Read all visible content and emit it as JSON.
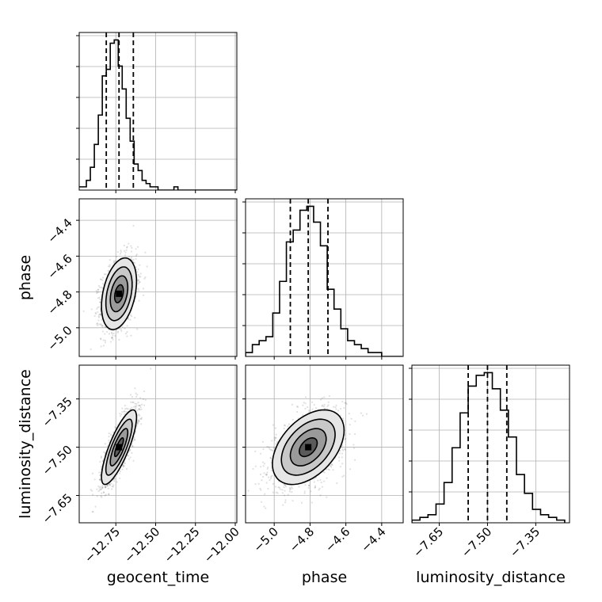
{
  "chart_data": {
    "type": "corner",
    "grid": true,
    "parameters": [
      {
        "name": "geocent_time",
        "range": [
          -12.98,
          -11.99
        ],
        "ticks": [
          -12.75,
          -12.5,
          -12.25,
          -12.0
        ],
        "tick_labels": [
          "−12.75",
          "−12.50",
          "−12.25",
          "−12.00"
        ],
        "quantiles": [
          -12.81,
          -12.73,
          -12.64
        ]
      },
      {
        "name": "phase",
        "range": [
          -5.16,
          -4.28
        ],
        "ticks": [
          -5.0,
          -4.8,
          -4.6,
          -4.4
        ],
        "tick_labels": [
          "−5.0",
          "−4.8",
          "−4.6",
          "−4.4"
        ],
        "quantiles": [
          -4.91,
          -4.81,
          -4.7
        ]
      },
      {
        "name": "luminosity_distance",
        "range": [
          -7.735,
          -7.245
        ],
        "ticks": [
          -7.65,
          -7.5,
          -7.35
        ],
        "tick_labels": [
          "−7.65",
          "−7.50",
          "−7.35"
        ],
        "quantiles": [
          -7.56,
          -7.5,
          -7.44
        ]
      }
    ],
    "diagonal_histograms": [
      {
        "parameter": "geocent_time",
        "bin_edges": [
          -12.985,
          -12.96,
          -12.935,
          -12.91,
          -12.885,
          -12.86,
          -12.835,
          -12.81,
          -12.785,
          -12.76,
          -12.735,
          -12.71,
          -12.685,
          -12.66,
          -12.635,
          -12.61,
          -12.585,
          -12.56,
          -12.535,
          -12.51,
          -12.485,
          -12.46,
          -12.435,
          -12.41,
          -12.385,
          -12.36,
          -12.335,
          -12.31,
          -12.285,
          -12.26,
          -12.235,
          -12.21,
          -12.185,
          -12.16,
          -12.135,
          -12.11,
          -12.085,
          -12.06,
          -12.035,
          -12.01,
          -11.985
        ],
        "counts": [
          1,
          1,
          3,
          7,
          14,
          23,
          35,
          37,
          45,
          46,
          38,
          31,
          22,
          15,
          8,
          6,
          3,
          2,
          1,
          1,
          0,
          0,
          0,
          0,
          1,
          0,
          0,
          0,
          0,
          0,
          0,
          0,
          0,
          0,
          0,
          0,
          0,
          0,
          0,
          0
        ]
      },
      {
        "parameter": "phase",
        "bin_edges": [
          -5.16,
          -5.122,
          -5.084,
          -5.046,
          -5.008,
          -4.97,
          -4.932,
          -4.894,
          -4.856,
          -4.818,
          -4.78,
          -4.742,
          -4.704,
          -4.666,
          -4.628,
          -4.59,
          -4.552,
          -4.514,
          -4.476,
          -4.438,
          -4.4,
          -4.362,
          -4.324,
          -4.286
        ],
        "counts": [
          1,
          3,
          4,
          5,
          11,
          19,
          29,
          32,
          37,
          38,
          34,
          28,
          17,
          12,
          7,
          4,
          3,
          2,
          1,
          1,
          0,
          0,
          0
        ]
      },
      {
        "parameter": "luminosity_distance",
        "bin_edges": [
          -7.735,
          -7.71,
          -7.685,
          -7.66,
          -7.635,
          -7.61,
          -7.585,
          -7.56,
          -7.535,
          -7.51,
          -7.485,
          -7.46,
          -7.435,
          -7.41,
          -7.385,
          -7.36,
          -7.335,
          -7.31,
          -7.285,
          -7.26
        ],
        "counts": [
          1,
          2,
          3,
          7,
          15,
          28,
          41,
          51,
          55,
          56,
          50,
          42,
          32,
          18,
          11,
          5,
          3,
          2,
          1
        ]
      }
    ],
    "joint_panels": [
      {
        "x": "geocent_time",
        "y": "phase",
        "center": [
          -12.73,
          -4.81
        ],
        "spread": [
          0.055,
          0.1
        ],
        "correlation": 0.35
      },
      {
        "x": "geocent_time",
        "y": "luminosity_distance",
        "center": [
          -12.73,
          -7.5
        ],
        "spread": [
          0.055,
          0.058
        ],
        "correlation": 0.8
      },
      {
        "x": "phase",
        "y": "luminosity_distance",
        "center": [
          -4.81,
          -7.5
        ],
        "spread": [
          0.1,
          0.058
        ],
        "correlation": 0.45
      }
    ],
    "contour_levels_sigma": [
      0.5,
      1.0,
      1.5,
      2.0
    ],
    "colors": {
      "line": "#000000",
      "grid": "#b0b0b0",
      "points": "#000000"
    }
  }
}
